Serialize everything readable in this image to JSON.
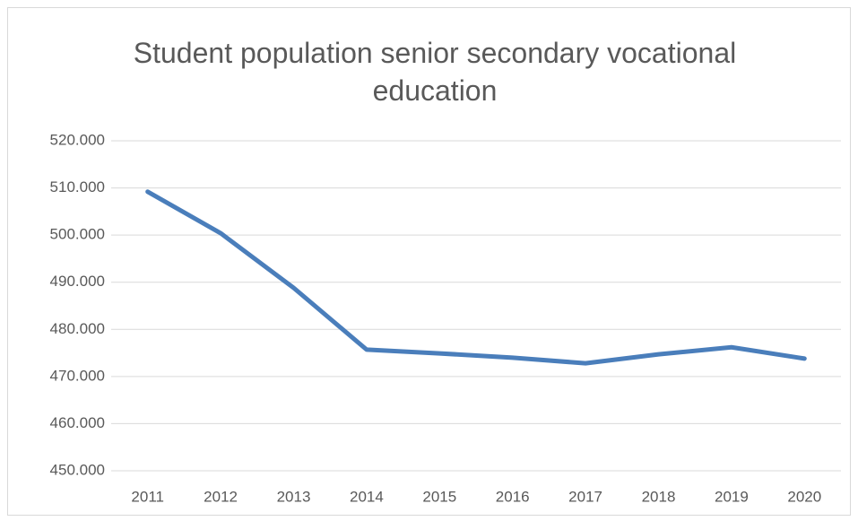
{
  "chart_data": {
    "type": "line",
    "title": "Student population senior secondary vocational education",
    "categories": [
      "2011",
      "2012",
      "2013",
      "2014",
      "2015",
      "2016",
      "2017",
      "2018",
      "2019",
      "2020"
    ],
    "series": [
      {
        "name": "Student population",
        "color": "#4a7ebb",
        "values": [
          509200,
          500400,
          488800,
          475700,
          474900,
          474000,
          472800,
          474700,
          476200,
          473800
        ]
      }
    ],
    "ylim": [
      450000,
      520000
    ],
    "yticks": [
      {
        "value": 450000,
        "label": "450.000"
      },
      {
        "value": 460000,
        "label": "460.000"
      },
      {
        "value": 470000,
        "label": "470.000"
      },
      {
        "value": 480000,
        "label": "480.000"
      },
      {
        "value": 490000,
        "label": "490.000"
      },
      {
        "value": 500000,
        "label": "500.000"
      },
      {
        "value": 510000,
        "label": "510.000"
      },
      {
        "value": 520000,
        "label": "520.000"
      }
    ],
    "grid": true
  }
}
